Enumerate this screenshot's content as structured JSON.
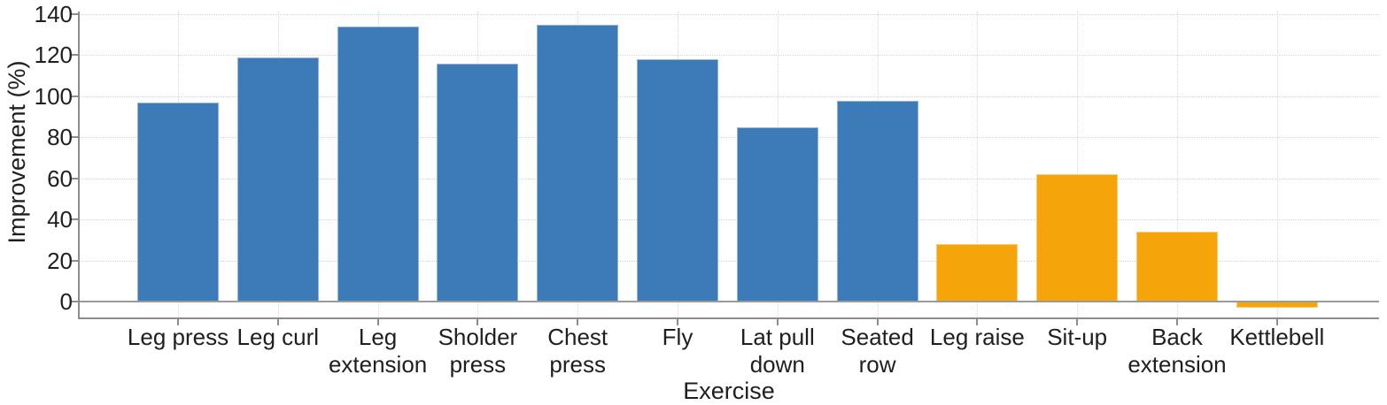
{
  "chart_data": {
    "type": "bar",
    "title": "",
    "xlabel": "Exercise",
    "ylabel": "Improvement (%)",
    "categories": [
      "Leg press",
      "Leg curl",
      "Leg extension",
      "Sholder press",
      "Chest press",
      "Fly",
      "Lat pull down",
      "Seated row",
      "Leg raise",
      "Sit-up",
      "Back extension",
      "Kettlebell"
    ],
    "label_lines": [
      [
        "Leg press"
      ],
      [
        "Leg curl"
      ],
      [
        "Leg",
        "extension"
      ],
      [
        "Sholder",
        "press"
      ],
      [
        "Chest",
        "press"
      ],
      [
        "Fly"
      ],
      [
        "Lat pull",
        "down"
      ],
      [
        "Seated",
        "row"
      ],
      [
        "Leg raise"
      ],
      [
        "Sit-up"
      ],
      [
        "Back",
        "extension"
      ],
      [
        "Kettlebell"
      ]
    ],
    "values": [
      97,
      119,
      134,
      116,
      135,
      118,
      85,
      98,
      28,
      62,
      34,
      -3
    ],
    "bar_colors": [
      "#3d7ab8",
      "#3d7ab8",
      "#3d7ab8",
      "#3d7ab8",
      "#3d7ab8",
      "#3d7ab8",
      "#3d7ab8",
      "#3d7ab8",
      "#f5a40a",
      "#f5a40a",
      "#f5a40a",
      "#f5a40a"
    ],
    "yticks": [
      0,
      20,
      40,
      60,
      80,
      100,
      120,
      140
    ],
    "ylim": [
      -7,
      141
    ],
    "grid": true,
    "legend_position": "none",
    "colors": {
      "series_blue": "#3d7ab8",
      "series_orange": "#f5a40a",
      "axis": "#8d8d8d",
      "gridline": "#d6d6d6",
      "text": "#1f1f1f"
    }
  }
}
